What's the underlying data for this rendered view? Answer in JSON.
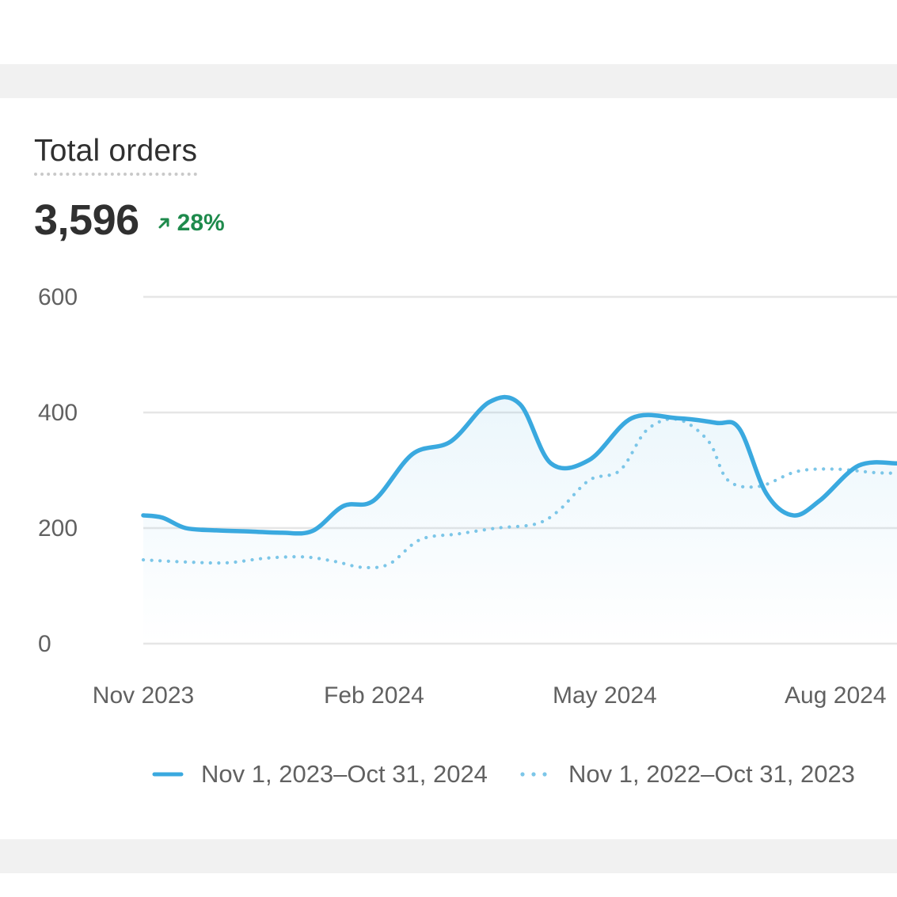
{
  "card": {
    "title": "Total orders",
    "value": "3,596",
    "change": "28%",
    "change_direction": "up",
    "change_color": "#1e8a4c",
    "arrow_icon": "arrow-up-right-icon"
  },
  "chart_data": {
    "type": "line",
    "title": "Total orders",
    "xlabel": "",
    "ylabel": "",
    "ylim": [
      0,
      600
    ],
    "y_ticks": [
      0,
      200,
      400,
      600
    ],
    "x_ticks": [
      "Nov 2023",
      "Feb 2024",
      "May 2024",
      "Aug 2024"
    ],
    "x_tick_positions": [
      0,
      3,
      6,
      9
    ],
    "xlim": [
      0,
      9.8
    ],
    "grid": true,
    "legend_position": "bottom-center",
    "series": [
      {
        "name": "Nov 1, 2023–Oct 31, 2024",
        "style": "solid",
        "color": "#3aa9df",
        "area_fill": true,
        "points": [
          [
            0,
            222
          ],
          [
            0.25,
            218
          ],
          [
            0.55,
            200
          ],
          [
            0.95,
            196
          ],
          [
            1.4,
            194
          ],
          [
            1.8,
            192
          ],
          [
            2.2,
            195
          ],
          [
            2.6,
            238
          ],
          [
            3.0,
            248
          ],
          [
            3.5,
            328
          ],
          [
            4.0,
            350
          ],
          [
            4.5,
            418
          ],
          [
            4.9,
            414
          ],
          [
            5.3,
            312
          ],
          [
            5.8,
            318
          ],
          [
            6.35,
            390
          ],
          [
            6.95,
            390
          ],
          [
            7.45,
            382
          ],
          [
            7.75,
            372
          ],
          [
            8.1,
            260
          ],
          [
            8.45,
            222
          ],
          [
            8.8,
            248
          ],
          [
            9.3,
            308
          ],
          [
            9.8,
            312
          ]
        ]
      },
      {
        "name": "Nov 1, 2022–Oct 31, 2023",
        "style": "dotted",
        "color": "#7cc6e8",
        "area_fill": false,
        "points": [
          [
            0,
            145
          ],
          [
            0.6,
            141
          ],
          [
            1.1,
            140
          ],
          [
            1.6,
            148
          ],
          [
            2.1,
            150
          ],
          [
            2.5,
            142
          ],
          [
            2.85,
            132
          ],
          [
            3.2,
            138
          ],
          [
            3.6,
            180
          ],
          [
            4.1,
            190
          ],
          [
            4.6,
            200
          ],
          [
            5.1,
            207
          ],
          [
            5.4,
            230
          ],
          [
            5.8,
            283
          ],
          [
            6.2,
            300
          ],
          [
            6.55,
            370
          ],
          [
            6.95,
            388
          ],
          [
            7.35,
            350
          ],
          [
            7.6,
            283
          ],
          [
            8.0,
            272
          ],
          [
            8.5,
            298
          ],
          [
            9.0,
            302
          ],
          [
            9.5,
            296
          ],
          [
            9.8,
            295
          ]
        ]
      }
    ]
  }
}
